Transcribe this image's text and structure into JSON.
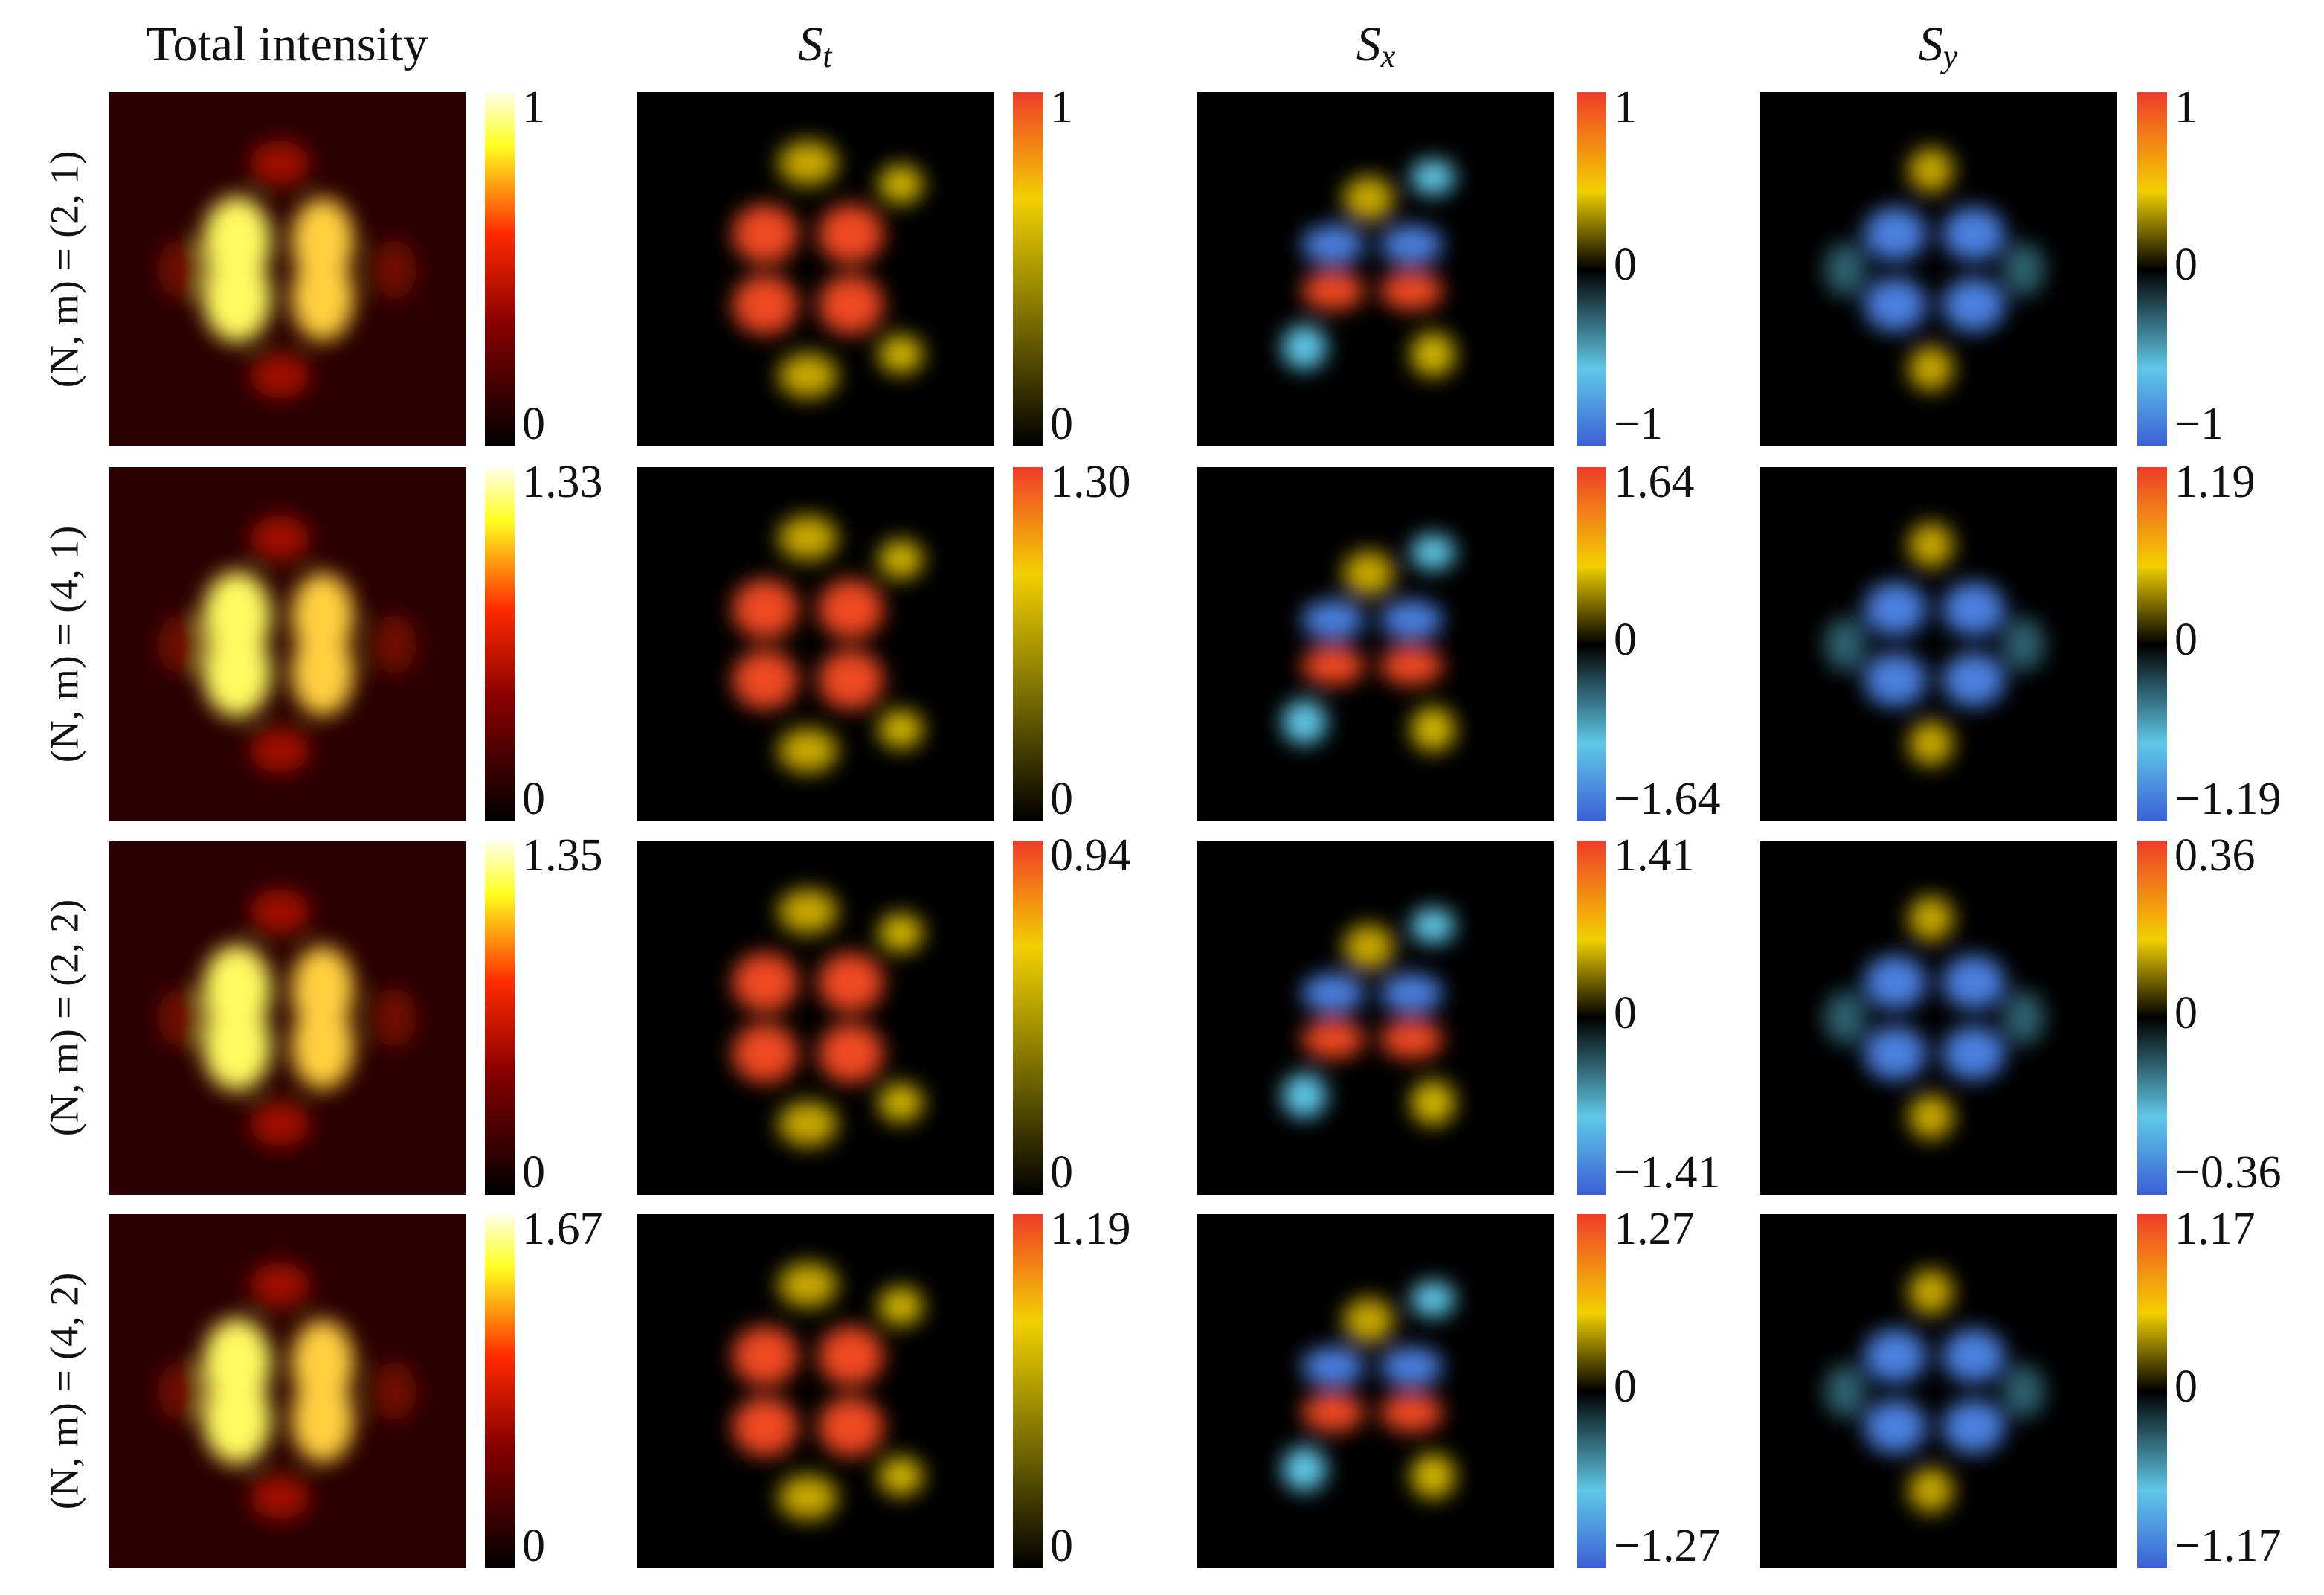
{
  "columns": [
    {
      "text": "Total intensity"
    },
    {
      "symbol": "S",
      "subscript": "t"
    },
    {
      "symbol": "S",
      "subscript": "x"
    },
    {
      "symbol": "S",
      "subscript": "y"
    }
  ],
  "rows": [
    {
      "label": "(N, m) = (2, 1)",
      "colorbars": [
        {
          "max": "1",
          "min": "0"
        },
        {
          "max": "1",
          "min": "0"
        },
        {
          "max": "1",
          "mid": "0",
          "min": "−1"
        },
        {
          "max": "1",
          "mid": "0",
          "min": "−1"
        }
      ]
    },
    {
      "label": "(N, m) = (4, 1)",
      "colorbars": [
        {
          "max": "1.33",
          "min": "0"
        },
        {
          "max": "1.30",
          "min": "0"
        },
        {
          "max": "1.64",
          "mid": "0",
          "min": "−1.64"
        },
        {
          "max": "1.19",
          "mid": "0",
          "min": "−1.19"
        }
      ]
    },
    {
      "label": "(N, m) = (2, 2)",
      "colorbars": [
        {
          "max": "1.35",
          "min": "0"
        },
        {
          "max": "0.94",
          "min": "0"
        },
        {
          "max": "1.41",
          "mid": "0",
          "min": "−1.41"
        },
        {
          "max": "0.36",
          "mid": "0",
          "min": "−0.36"
        }
      ]
    },
    {
      "label": "(N, m) = (4, 2)",
      "colorbars": [
        {
          "max": "1.67",
          "min": "0"
        },
        {
          "max": "1.19",
          "min": "0"
        },
        {
          "max": "1.27",
          "mid": "0",
          "min": "−1.27"
        },
        {
          "max": "1.17",
          "mid": "0",
          "min": "−1.17"
        }
      ]
    }
  ]
}
